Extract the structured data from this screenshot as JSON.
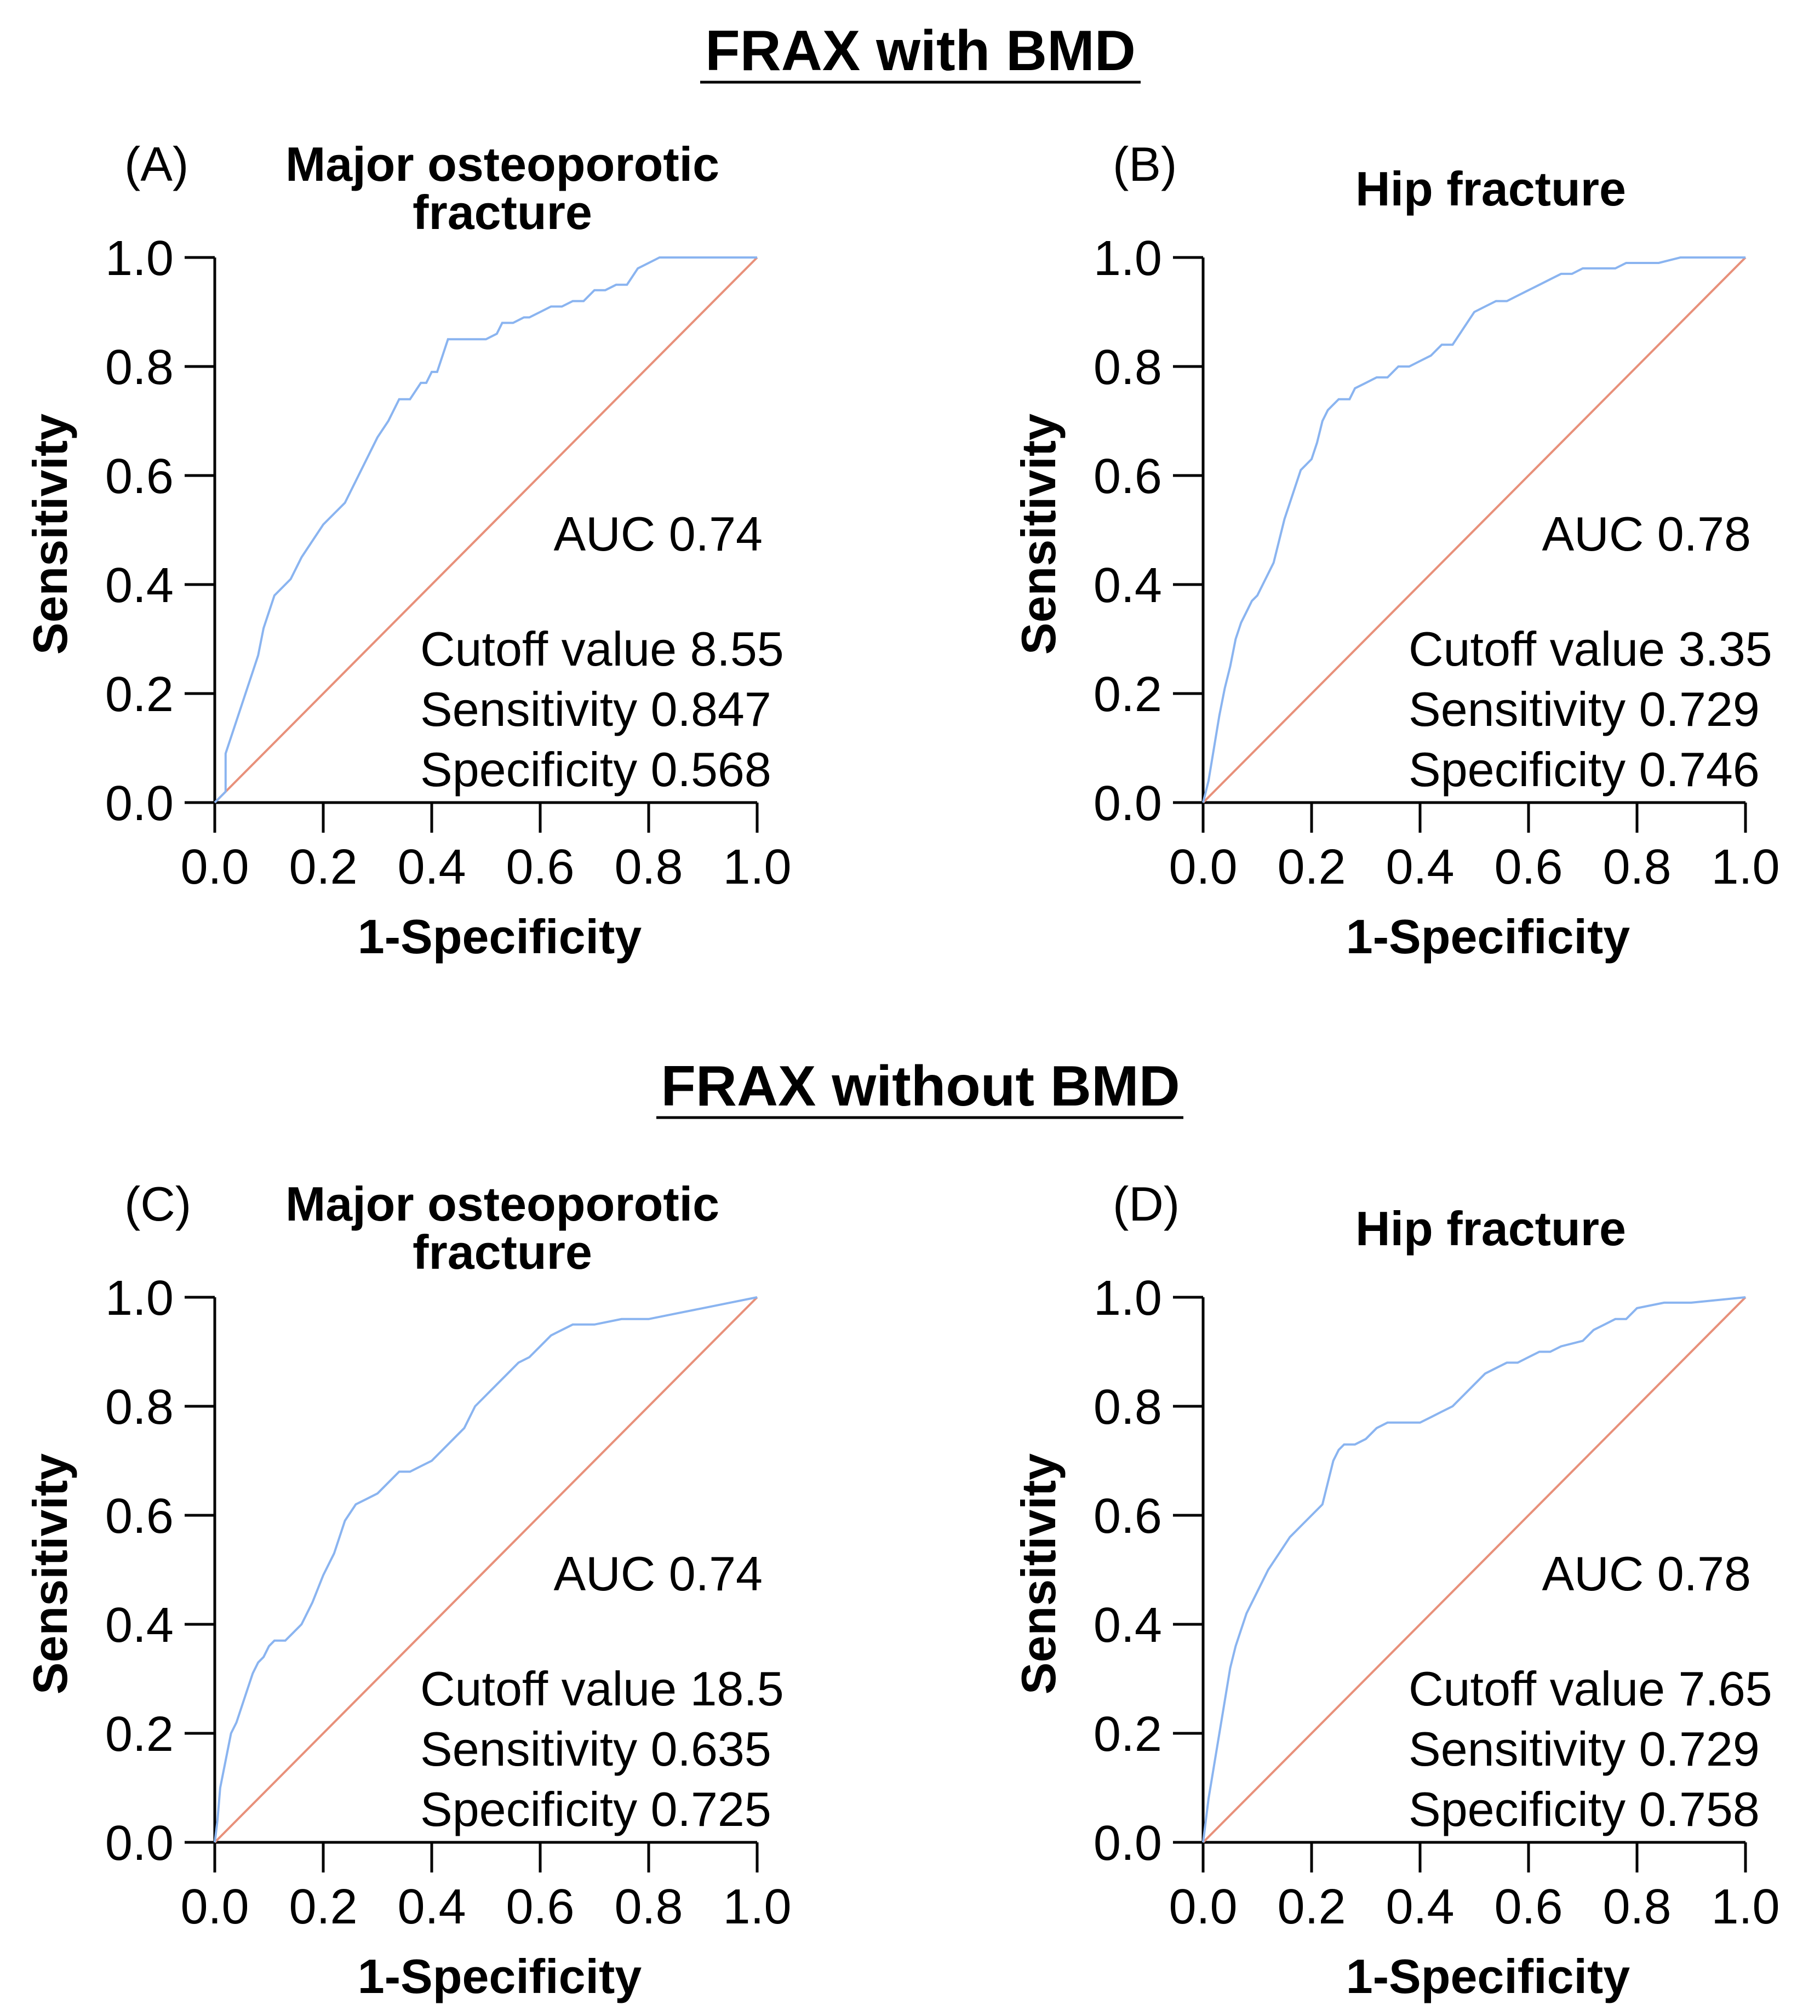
{
  "sections": [
    {
      "title": "FRAX with BMD"
    },
    {
      "title": "FRAX without BMD"
    }
  ],
  "colors": {
    "roc": "#8ab4f0",
    "reference": "#e8907a",
    "axis": "#000000"
  },
  "chart_data": [
    {
      "type": "line",
      "section": "FRAX with BMD",
      "panel_label": "(A)",
      "title_lines": [
        "Major osteoporotic",
        "fracture"
      ],
      "xlabel": "1-Specificity",
      "ylabel": "Sensitivity",
      "xlim": [
        0,
        1
      ],
      "ylim": [
        0,
        1
      ],
      "x_ticks": [
        "0.0",
        "0.2",
        "0.4",
        "0.6",
        "0.8",
        "1.0"
      ],
      "y_ticks": [
        "0.0",
        "0.2",
        "0.4",
        "0.6",
        "0.8",
        "1.0"
      ],
      "auc": "AUC 0.74",
      "stats": [
        "Cutoff value 8.55",
        "Sensitivity 0.847",
        "Specificity 0.568"
      ],
      "series": [
        {
          "x": [
            0,
            0.02,
            0.02,
            0.03,
            0.04,
            0.05,
            0.06,
            0.07,
            0.08,
            0.09,
            0.1,
            0.11,
            0.12,
            0.14,
            0.16,
            0.18,
            0.2,
            0.22,
            0.24,
            0.26,
            0.28,
            0.3,
            0.32,
            0.34,
            0.36,
            0.38,
            0.39,
            0.4,
            0.41,
            0.42,
            0.43,
            0.44,
            0.45,
            0.5,
            0.52,
            0.53,
            0.55,
            0.57,
            0.58,
            0.6,
            0.62,
            0.64,
            0.66,
            0.68,
            0.7,
            0.72,
            0.74,
            0.76,
            0.78,
            0.8,
            0.82,
            0.9,
            1.0
          ],
          "y": [
            0,
            0.02,
            0.09,
            0.12,
            0.15,
            0.18,
            0.21,
            0.24,
            0.27,
            0.32,
            0.35,
            0.38,
            0.39,
            0.41,
            0.45,
            0.48,
            0.51,
            0.53,
            0.55,
            0.59,
            0.63,
            0.67,
            0.7,
            0.74,
            0.74,
            0.77,
            0.77,
            0.79,
            0.79,
            0.82,
            0.85,
            0.85,
            0.85,
            0.85,
            0.86,
            0.88,
            0.88,
            0.89,
            0.89,
            0.9,
            0.91,
            0.91,
            0.92,
            0.92,
            0.94,
            0.94,
            0.95,
            0.95,
            0.98,
            0.99,
            1.0,
            1.0,
            1.0
          ]
        }
      ]
    },
    {
      "type": "line",
      "section": "FRAX with BMD",
      "panel_label": "(B)",
      "title_lines": [
        "Hip fracture"
      ],
      "xlabel": "1-Specificity",
      "ylabel": "Sensitivity",
      "xlim": [
        0,
        1
      ],
      "ylim": [
        0,
        1
      ],
      "x_ticks": [
        "0.0",
        "0.2",
        "0.4",
        "0.6",
        "0.8",
        "1.0"
      ],
      "y_ticks": [
        "0.0",
        "0.2",
        "0.4",
        "0.6",
        "0.8",
        "1.0"
      ],
      "auc": "AUC 0.78",
      "stats": [
        "Cutoff value 3.35",
        "Sensitivity 0.729",
        "Specificity 0.746"
      ],
      "series": [
        {
          "x": [
            0,
            0.01,
            0.02,
            0.03,
            0.04,
            0.05,
            0.06,
            0.07,
            0.08,
            0.09,
            0.1,
            0.11,
            0.12,
            0.13,
            0.14,
            0.15,
            0.16,
            0.17,
            0.18,
            0.19,
            0.2,
            0.21,
            0.22,
            0.23,
            0.24,
            0.25,
            0.27,
            0.28,
            0.3,
            0.32,
            0.34,
            0.36,
            0.38,
            0.4,
            0.42,
            0.44,
            0.46,
            0.48,
            0.5,
            0.52,
            0.54,
            0.56,
            0.58,
            0.6,
            0.62,
            0.64,
            0.66,
            0.68,
            0.7,
            0.72,
            0.74,
            0.76,
            0.78,
            0.8,
            0.82,
            0.84,
            0.88,
            0.9,
            1.0
          ],
          "y": [
            0,
            0.04,
            0.1,
            0.16,
            0.21,
            0.25,
            0.3,
            0.33,
            0.35,
            0.37,
            0.38,
            0.4,
            0.42,
            0.44,
            0.48,
            0.52,
            0.55,
            0.58,
            0.61,
            0.62,
            0.63,
            0.66,
            0.7,
            0.72,
            0.73,
            0.74,
            0.74,
            0.76,
            0.77,
            0.78,
            0.78,
            0.8,
            0.8,
            0.81,
            0.82,
            0.84,
            0.84,
            0.87,
            0.9,
            0.91,
            0.92,
            0.92,
            0.93,
            0.94,
            0.95,
            0.96,
            0.97,
            0.97,
            0.98,
            0.98,
            0.98,
            0.98,
            0.99,
            0.99,
            0.99,
            0.99,
            1.0,
            1.0,
            1.0
          ]
        }
      ]
    },
    {
      "type": "line",
      "section": "FRAX without BMD",
      "panel_label": "(C)",
      "title_lines": [
        "Major osteoporotic",
        "fracture"
      ],
      "xlabel": "1-Specificity",
      "ylabel": "Sensitivity",
      "xlim": [
        0,
        1
      ],
      "ylim": [
        0,
        1
      ],
      "x_ticks": [
        "0.0",
        "0.2",
        "0.4",
        "0.6",
        "0.8",
        "1.0"
      ],
      "y_ticks": [
        "0.0",
        "0.2",
        "0.4",
        "0.6",
        "0.8",
        "1.0"
      ],
      "auc": "AUC 0.74",
      "stats": [
        "Cutoff value 18.5",
        "Sensitivity 0.635",
        "Specificity 0.725"
      ],
      "series": [
        {
          "x": [
            0,
            0.005,
            0.01,
            0.02,
            0.03,
            0.04,
            0.05,
            0.06,
            0.07,
            0.08,
            0.09,
            0.1,
            0.11,
            0.12,
            0.13,
            0.14,
            0.16,
            0.18,
            0.2,
            0.22,
            0.24,
            0.26,
            0.28,
            0.3,
            0.32,
            0.34,
            0.36,
            0.38,
            0.4,
            0.42,
            0.44,
            0.46,
            0.48,
            0.5,
            0.52,
            0.54,
            0.56,
            0.58,
            0.6,
            0.62,
            0.64,
            0.66,
            0.7,
            0.75,
            0.8,
            0.85,
            0.9,
            0.95,
            1.0
          ],
          "y": [
            0,
            0.04,
            0.1,
            0.15,
            0.2,
            0.22,
            0.25,
            0.28,
            0.31,
            0.33,
            0.34,
            0.36,
            0.37,
            0.37,
            0.37,
            0.38,
            0.4,
            0.44,
            0.49,
            0.53,
            0.59,
            0.62,
            0.63,
            0.64,
            0.66,
            0.68,
            0.68,
            0.69,
            0.7,
            0.72,
            0.74,
            0.76,
            0.8,
            0.82,
            0.84,
            0.86,
            0.88,
            0.89,
            0.91,
            0.93,
            0.94,
            0.95,
            0.95,
            0.96,
            0.96,
            0.97,
            0.98,
            0.99,
            1.0
          ]
        }
      ]
    },
    {
      "type": "line",
      "section": "FRAX without BMD",
      "panel_label": "(D)",
      "title_lines": [
        "Hip fracture"
      ],
      "xlabel": "1-Specificity",
      "ylabel": "Sensitivity",
      "xlim": [
        0,
        1
      ],
      "ylim": [
        0,
        1
      ],
      "x_ticks": [
        "0.0",
        "0.2",
        "0.4",
        "0.6",
        "0.8",
        "1.0"
      ],
      "y_ticks": [
        "0.0",
        "0.2",
        "0.4",
        "0.6",
        "0.8",
        "1.0"
      ],
      "auc": "AUC 0.78",
      "stats": [
        "Cutoff value 7.65",
        "Sensitivity 0.729",
        "Specificity 0.758"
      ],
      "series": [
        {
          "x": [
            0,
            0.01,
            0.02,
            0.03,
            0.04,
            0.05,
            0.06,
            0.07,
            0.08,
            0.09,
            0.1,
            0.12,
            0.14,
            0.16,
            0.18,
            0.2,
            0.22,
            0.23,
            0.24,
            0.25,
            0.26,
            0.28,
            0.3,
            0.32,
            0.34,
            0.36,
            0.38,
            0.4,
            0.42,
            0.44,
            0.46,
            0.48,
            0.5,
            0.52,
            0.54,
            0.56,
            0.58,
            0.6,
            0.62,
            0.64,
            0.66,
            0.7,
            0.72,
            0.74,
            0.76,
            0.78,
            0.8,
            0.85,
            0.9,
            1.0
          ],
          "y": [
            0,
            0.08,
            0.14,
            0.2,
            0.26,
            0.32,
            0.36,
            0.39,
            0.42,
            0.44,
            0.46,
            0.5,
            0.53,
            0.56,
            0.58,
            0.6,
            0.62,
            0.66,
            0.7,
            0.72,
            0.73,
            0.73,
            0.74,
            0.76,
            0.77,
            0.77,
            0.77,
            0.77,
            0.78,
            0.79,
            0.8,
            0.82,
            0.84,
            0.86,
            0.87,
            0.88,
            0.88,
            0.89,
            0.9,
            0.9,
            0.91,
            0.92,
            0.94,
            0.95,
            0.96,
            0.96,
            0.98,
            0.99,
            0.99,
            1.0
          ]
        }
      ]
    }
  ]
}
